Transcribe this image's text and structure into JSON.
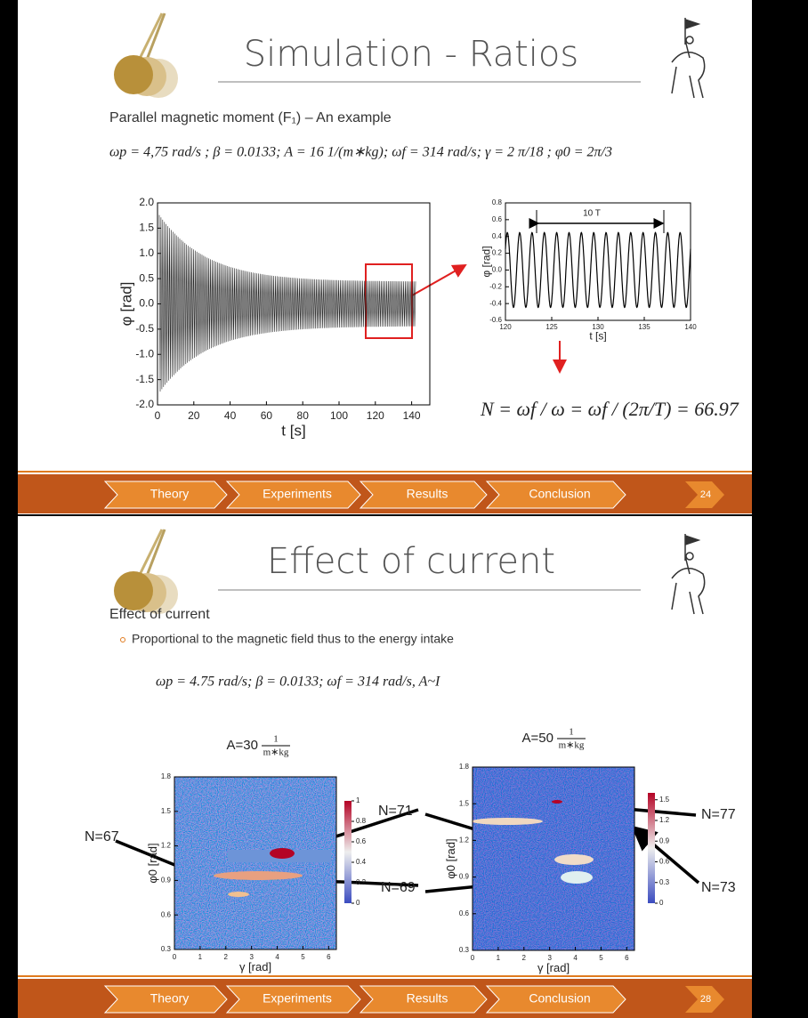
{
  "slides": [
    {
      "title": "Simulation - Ratios",
      "subtitle": "Parallel magnetic moment (F₁) – An example",
      "formula": "ωp = 4,75 rad/s ;  β = 0.0133;  A = 16 1/(m∗kg);  ωf = 314 rad/s;  γ = 2 π/18 ; φ0 = 2π/3",
      "charts": [
        {
          "type": "line",
          "xlabel": "t [s]",
          "ylabel": "φ [rad]",
          "xlim": [
            0,
            150
          ],
          "ylim": [
            -2,
            2
          ],
          "xticks": [
            0,
            20,
            40,
            60,
            80,
            100,
            120,
            140
          ],
          "yticks": [
            {
              "value": -2,
              "label": "-2.0"
            },
            -1.5,
            {
              "value": -1,
              "label": "-1.0"
            },
            -0.5,
            {
              "value": 0,
              "label": "0.0"
            },
            0.5,
            {
              "value": 1,
              "label": "1.0"
            },
            1.5,
            {
              "value": 2,
              "label": "2.0"
            }
          ]
        },
        {
          "type": "line",
          "xlabel": "t [s]",
          "ylabel": "φ [rad]",
          "xlim": [
            120,
            140
          ],
          "ylim": [
            -0.6,
            0.8
          ],
          "xticks": [
            120,
            125,
            130,
            135,
            140
          ],
          "yticks": [
            -0.6,
            -0.4,
            -0.2,
            {
              "value": 0,
              "label": "0.0"
            },
            0.2,
            0.4,
            0.6,
            0.8
          ],
          "annotation": "10 T"
        }
      ],
      "result": "N = ωf / ω = ωf / (2π/T) = 66.97",
      "nav": [
        "Theory",
        "Experiments",
        "Results",
        "Conclusion"
      ],
      "page": "24"
    },
    {
      "title": "Effect of current",
      "subtitle": "Effect of current",
      "bullet": "Proportional to the magnetic field thus to the energy intake",
      "formula": "ωp = 4.75 rad/s;  β = 0.0133;  ωf = 314 rad/s,  A~I",
      "charts": [
        {
          "type": "heatmap",
          "title": "A=30",
          "unit_num": "1",
          "unit_den": "m∗kg",
          "xlabel": "γ [rad]",
          "ylabel": "φ0 [rad]",
          "xlim": [
            0,
            6.3
          ],
          "ylim": [
            0.3,
            1.8
          ],
          "xticks": [
            0,
            1,
            2,
            3,
            4,
            5,
            6
          ],
          "yticks": [
            0.3,
            0.6,
            0.9,
            1.2,
            1.5,
            1.8
          ],
          "clim": [
            0,
            1
          ],
          "cticks": [
            0,
            0.2,
            0.4,
            0.6,
            0.8,
            1
          ]
        },
        {
          "type": "heatmap",
          "title": "A=50",
          "unit_num": "1",
          "unit_den": "m∗kg",
          "xlabel": "γ [rad]",
          "ylabel": "φ0 [rad]",
          "xlim": [
            0,
            6.3
          ],
          "ylim": [
            0.3,
            1.8
          ],
          "xticks": [
            0,
            1,
            2,
            3,
            4,
            5,
            6
          ],
          "yticks": [
            0.3,
            0.6,
            0.9,
            1.2,
            1.5,
            1.8
          ],
          "clim": [
            0,
            1.6
          ],
          "cticks": [
            0,
            0.3,
            0.6,
            0.9,
            1.2,
            1.5
          ]
        }
      ],
      "annotations": [
        "N=67",
        "N=71",
        "N=69",
        "N=77",
        "N=73"
      ],
      "nav": [
        "Theory",
        "Experiments",
        "Results",
        "Conclusion"
      ],
      "page": "28"
    }
  ]
}
